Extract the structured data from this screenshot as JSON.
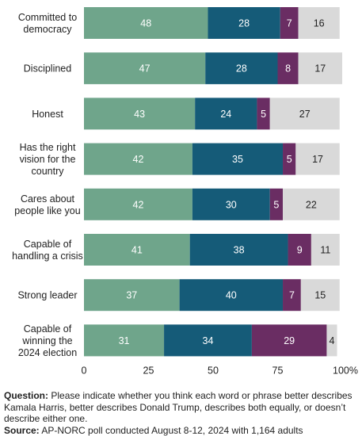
{
  "chart_data": {
    "type": "bar",
    "orientation": "horizontal",
    "stacked": true,
    "categories": [
      [
        "Committed to",
        "democracy"
      ],
      [
        "Disciplined"
      ],
      [
        "Honest"
      ],
      [
        "Has the right",
        "vision for the",
        "country"
      ],
      [
        "Cares about",
        "people like you"
      ],
      [
        "Capable of",
        "handling a crisis"
      ],
      [
        "Strong leader"
      ],
      [
        "Capable of",
        "winning the",
        "2024 election"
      ]
    ],
    "series": [
      {
        "values": [
          48,
          47,
          43,
          42,
          42,
          41,
          37,
          31
        ],
        "color": "#6fa58b",
        "label_color": "#ffffff"
      },
      {
        "values": [
          28,
          28,
          24,
          35,
          30,
          38,
          40,
          34
        ],
        "color": "#155b78",
        "label_color": "#ffffff"
      },
      {
        "values": [
          7,
          8,
          5,
          5,
          5,
          9,
          7,
          29
        ],
        "color": "#6a2d63",
        "label_color": "#ffffff"
      },
      {
        "values": [
          16,
          17,
          27,
          17,
          22,
          11,
          15,
          4
        ],
        "color": "#d9d9d9",
        "label_color": "#222222"
      }
    ],
    "xlim": [
      0,
      100
    ],
    "x_ticks": [
      "0",
      "25",
      "50",
      "75",
      "100%"
    ],
    "grid": false
  },
  "notes": {
    "question_label": "Question:",
    "question_text": "Please indicate whether you think each word or phrase better describes Kamala Harris, better describes Donald Trump, describes both equally, or doesn’t describe either one.",
    "source_label": "Source:",
    "source_text": "AP-NORC poll conducted August 8-12, 2024 with 1,164 adults"
  }
}
